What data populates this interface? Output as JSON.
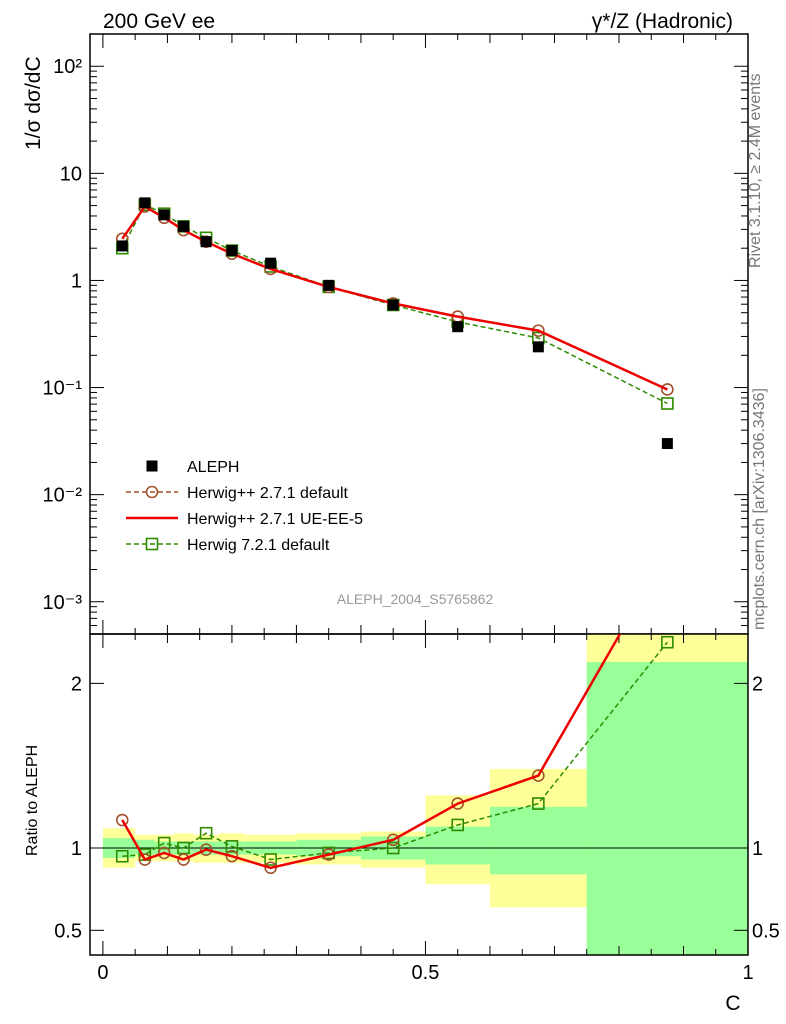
{
  "header": {
    "left": "200 GeV ee",
    "right": "γ*/Z (Hadronic)"
  },
  "side": {
    "rivet": "Rivet 3.1.10, ≥ 2.4M events",
    "site": "mcplots.cern.ch [arXiv:1306.3436]"
  },
  "analysis_id": "ALEPH_2004_S5765862",
  "colors": {
    "aleph": "#000000",
    "h271def": "#a0522d",
    "h271ue": "#ee0000",
    "h721": "#2e8b00",
    "band_yellow": "#ffff99",
    "band_green": "#99ff99"
  },
  "chart_data": [
    {
      "type": "line",
      "yscale": "log",
      "ylabel": "1/σ  dσ/dC",
      "xlim": [
        -0.02,
        1.0
      ],
      "ylim": [
        0.0005,
        200
      ],
      "y_ticks": [
        {
          "v": 0.001,
          "label": "10⁻³"
        },
        {
          "v": 0.01,
          "label": "10⁻²"
        },
        {
          "v": 0.1,
          "label": "10⁻¹"
        },
        {
          "v": 1,
          "label": "1"
        },
        {
          "v": 10,
          "label": "10"
        },
        {
          "v": 100,
          "label": "10²"
        }
      ],
      "x": [
        0.03,
        0.065,
        0.095,
        0.125,
        0.16,
        0.2,
        0.26,
        0.35,
        0.45,
        0.55,
        0.675,
        0.875
      ],
      "legend": {
        "position": "lower-left",
        "entries": [
          "ALEPH",
          "Herwig++ 2.7.1 default",
          "Herwig++ 2.7.1 UE-EE-5",
          "Herwig 7.2.1 default"
        ]
      },
      "series": [
        {
          "name": "ALEPH",
          "style": "marker",
          "values": [
            2.1,
            5.3,
            4.1,
            3.2,
            2.3,
            1.9,
            1.45,
            0.9,
            0.59,
            0.37,
            0.24,
            0.03
          ]
        },
        {
          "name": "Herwig++ 2.7.1 default",
          "style": "dashed-circle",
          "values": [
            2.45,
            4.9,
            3.85,
            2.95,
            2.3,
            1.78,
            1.28,
            0.87,
            0.61,
            0.46,
            0.34,
            0.096
          ]
        },
        {
          "name": "Herwig++ 2.7.1 UE-EE-5",
          "style": "solid",
          "values": [
            2.45,
            4.9,
            3.85,
            2.95,
            2.3,
            1.78,
            1.28,
            0.87,
            0.61,
            0.46,
            0.34,
            0.096
          ]
        },
        {
          "name": "Herwig 7.2.1 default",
          "style": "dashed-square",
          "values": [
            2.0,
            5.1,
            4.2,
            3.2,
            2.5,
            1.9,
            1.35,
            0.87,
            0.59,
            0.41,
            0.29,
            0.071
          ]
        }
      ]
    },
    {
      "type": "line",
      "xlabel": "C",
      "ylabel": "Ratio to ALEPH",
      "xlim": [
        -0.02,
        1.0
      ],
      "ylim": [
        0.35,
        2.3
      ],
      "x_ticks": [
        {
          "v": 0,
          "label": "0"
        },
        {
          "v": 0.5,
          "label": "0.5"
        },
        {
          "v": 1,
          "label": "1"
        }
      ],
      "y_ticks": [
        {
          "v": 0.5,
          "label": "0.5"
        },
        {
          "v": 1,
          "label": "1"
        },
        {
          "v": 2,
          "label": "2"
        }
      ],
      "bins": [
        [
          0,
          0.05
        ],
        [
          0.05,
          0.08
        ],
        [
          0.08,
          0.11
        ],
        [
          0.11,
          0.14
        ],
        [
          0.14,
          0.18
        ],
        [
          0.18,
          0.22
        ],
        [
          0.22,
          0.3
        ],
        [
          0.3,
          0.4
        ],
        [
          0.4,
          0.5
        ],
        [
          0.5,
          0.6
        ],
        [
          0.6,
          0.75
        ],
        [
          0.75,
          1.0
        ]
      ],
      "band_total": [
        [
          0.88,
          1.12
        ],
        [
          0.92,
          1.08
        ],
        [
          0.92,
          1.08
        ],
        [
          0.92,
          1.09
        ],
        [
          0.91,
          1.08
        ],
        [
          0.91,
          1.09
        ],
        [
          0.91,
          1.08
        ],
        [
          0.9,
          1.09
        ],
        [
          0.88,
          1.1
        ],
        [
          0.78,
          1.32
        ],
        [
          0.64,
          1.48
        ],
        [
          0.35,
          2.3
        ]
      ],
      "band_stat": [
        [
          0.94,
          1.06
        ],
        [
          0.96,
          1.05
        ],
        [
          0.96,
          1.04
        ],
        [
          0.96,
          1.04
        ],
        [
          0.96,
          1.04
        ],
        [
          0.96,
          1.04
        ],
        [
          0.96,
          1.04
        ],
        [
          0.95,
          1.05
        ],
        [
          0.93,
          1.07
        ],
        [
          0.9,
          1.13
        ],
        [
          0.84,
          1.25
        ],
        [
          0.35,
          2.13
        ]
      ],
      "x": [
        0.03,
        0.065,
        0.095,
        0.125,
        0.16,
        0.2,
        0.26,
        0.35,
        0.45,
        0.55,
        0.675,
        0.875
      ],
      "series": [
        {
          "name": "Herwig++ 2.7.1 default",
          "style": "dashed-circle",
          "values": [
            1.17,
            0.93,
            0.97,
            0.93,
            0.99,
            0.95,
            0.88,
            0.96,
            1.05,
            1.27,
            1.44,
            2.8
          ]
        },
        {
          "name": "Herwig++ 2.7.1 UE-EE-5",
          "style": "solid",
          "values": [
            1.17,
            0.93,
            0.97,
            0.93,
            0.99,
            0.95,
            0.88,
            0.96,
            1.05,
            1.27,
            1.44,
            2.8
          ]
        },
        {
          "name": "Herwig 7.2.1 default",
          "style": "dashed-square",
          "values": [
            0.95,
            0.96,
            1.03,
            1.0,
            1.09,
            1.01,
            0.93,
            0.97,
            1.0,
            1.14,
            1.27,
            2.25
          ]
        }
      ]
    }
  ]
}
